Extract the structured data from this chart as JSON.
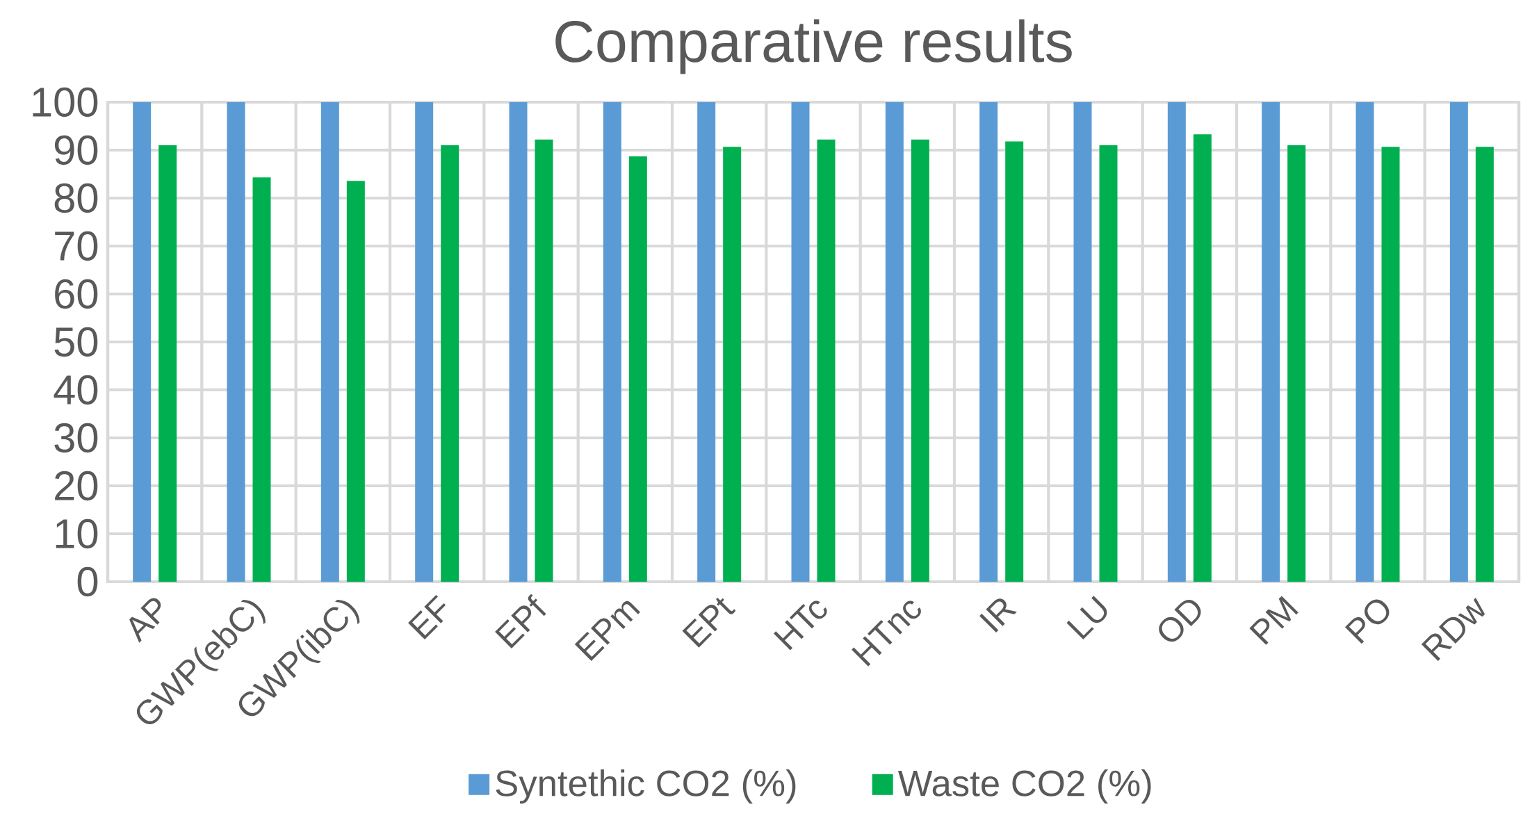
{
  "chart_data": {
    "type": "bar",
    "title": "Comparative results",
    "categories": [
      "AP",
      "GWP(ebC)",
      "GWP(ibC)",
      "EF",
      "EPf",
      "EPm",
      "EPt",
      "HTc",
      "HTnc",
      "IR",
      "LU",
      "OD",
      "PM",
      "PO",
      "RDw"
    ],
    "series": [
      {
        "name": "Syntethic CO2 (%)",
        "color": "#5b9bd5",
        "values": [
          100,
          100,
          100,
          100,
          100,
          100,
          100,
          100,
          100,
          100,
          100,
          100,
          100,
          100,
          100
        ]
      },
      {
        "name": "Waste CO2 (%)",
        "color": "#00b050",
        "values": [
          91.0,
          84.3,
          83.6,
          91.0,
          92.2,
          88.7,
          90.7,
          92.2,
          92.2,
          91.8,
          91.0,
          93.3,
          91.0,
          90.7,
          90.7
        ]
      }
    ],
    "ylim": [
      0,
      100
    ],
    "yticks": [
      0,
      10,
      20,
      30,
      40,
      50,
      60,
      70,
      80,
      90,
      100
    ],
    "grid": true,
    "legend": "bottom"
  }
}
